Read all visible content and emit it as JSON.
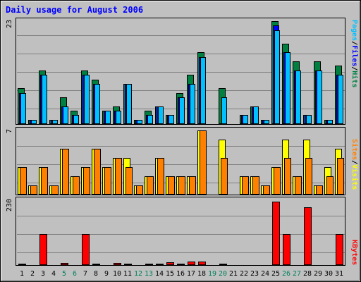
{
  "chart_data": {
    "type": "bar",
    "title": "Daily usage for August 2006",
    "days": [
      "1",
      "2",
      "3",
      "4",
      "5",
      "6",
      "7",
      "8",
      "9",
      "10",
      "11",
      "12",
      "13",
      "14",
      "15",
      "16",
      "17",
      "18",
      "19",
      "20",
      "21",
      "22",
      "23",
      "24",
      "25",
      "26",
      "27",
      "28",
      "29",
      "30",
      "31"
    ],
    "weekend_days": [
      "5",
      "6",
      "12",
      "13",
      "19",
      "20",
      "26",
      "27"
    ],
    "panels": [
      {
        "id": "hits",
        "max_label": "23",
        "ylim": [
          0,
          23
        ],
        "series": [
          {
            "name": "Hits",
            "color": "#008040",
            "values": [
              8,
              1,
              12,
              1,
              6,
              3,
              12,
              10,
              3,
              4,
              9,
              1,
              3,
              4,
              2,
              7,
              11,
              16,
              0,
              8,
              0,
              2,
              4,
              1,
              23,
              18,
              14,
              2,
              14,
              1,
              13
            ]
          },
          {
            "name": "Files",
            "color": "#0000ff",
            "values": [
              7,
              1,
              11,
              1,
              4,
              2,
              11,
              9,
              3,
              3,
              9,
              1,
              2,
              4,
              2,
              6,
              9,
              15,
              0,
              0,
              0,
              2,
              4,
              1,
              22,
              16,
              12,
              2,
              12,
              1,
              11
            ]
          },
          {
            "name": "Pages",
            "color": "#00c0ff",
            "values": [
              7,
              1,
              11,
              1,
              4,
              2,
              11,
              9,
              3,
              3,
              9,
              1,
              2,
              4,
              2,
              6,
              9,
              15,
              0,
              6,
              0,
              2,
              4,
              1,
              21,
              16,
              12,
              2,
              12,
              1,
              11
            ]
          }
        ]
      },
      {
        "id": "visits",
        "max_label": "7",
        "ylim": [
          0,
          7
        ],
        "series": [
          {
            "name": "Visits",
            "color": "#ffff00",
            "values": [
              3,
              1,
              3,
              1,
              5,
              2,
              3,
              5,
              3,
              4,
              4,
              1,
              2,
              4,
              2,
              2,
              2,
              7,
              0,
              6,
              0,
              2,
              2,
              1,
              3,
              6,
              2,
              6,
              1,
              3,
              5
            ]
          },
          {
            "name": "Sites",
            "color": "#ff8000",
            "values": [
              3,
              1,
              3,
              1,
              5,
              2,
              3,
              5,
              3,
              4,
              3,
              1,
              2,
              4,
              2,
              2,
              2,
              7,
              0,
              4,
              0,
              2,
              2,
              1,
              3,
              4,
              2,
              4,
              1,
              2,
              4
            ]
          }
        ]
      },
      {
        "id": "kbytes",
        "max_label": "230",
        "ylim": [
          0,
          230
        ],
        "series": [
          {
            "name": "KBytes",
            "color": "#ff0000",
            "values": [
              5,
              3,
              110,
              3,
              8,
              3,
              110,
              4,
              3,
              8,
              4,
              3,
              4,
              5,
              9,
              6,
              12,
              12,
              0,
              6,
              0,
              3,
              3,
              3,
              225,
              110,
              3,
              205,
              3,
              3,
              110
            ]
          }
        ]
      }
    ],
    "legend": {
      "hits": {
        "pages": "Pages",
        "files": "Files",
        "hits": "Hits",
        "sep": "/"
      },
      "visits": {
        "sites": "Sites",
        "visits": "Visits",
        "sep": "/"
      },
      "kbytes": {
        "kbytes": "KBytes"
      }
    },
    "colors": {
      "background": "#c0c0c0",
      "plot": "#c0c0c0",
      "title": "#0000ff",
      "axis_text": "#000000",
      "weekend_text": "#00805c",
      "grid": "#808080"
    },
    "grid": true
  }
}
